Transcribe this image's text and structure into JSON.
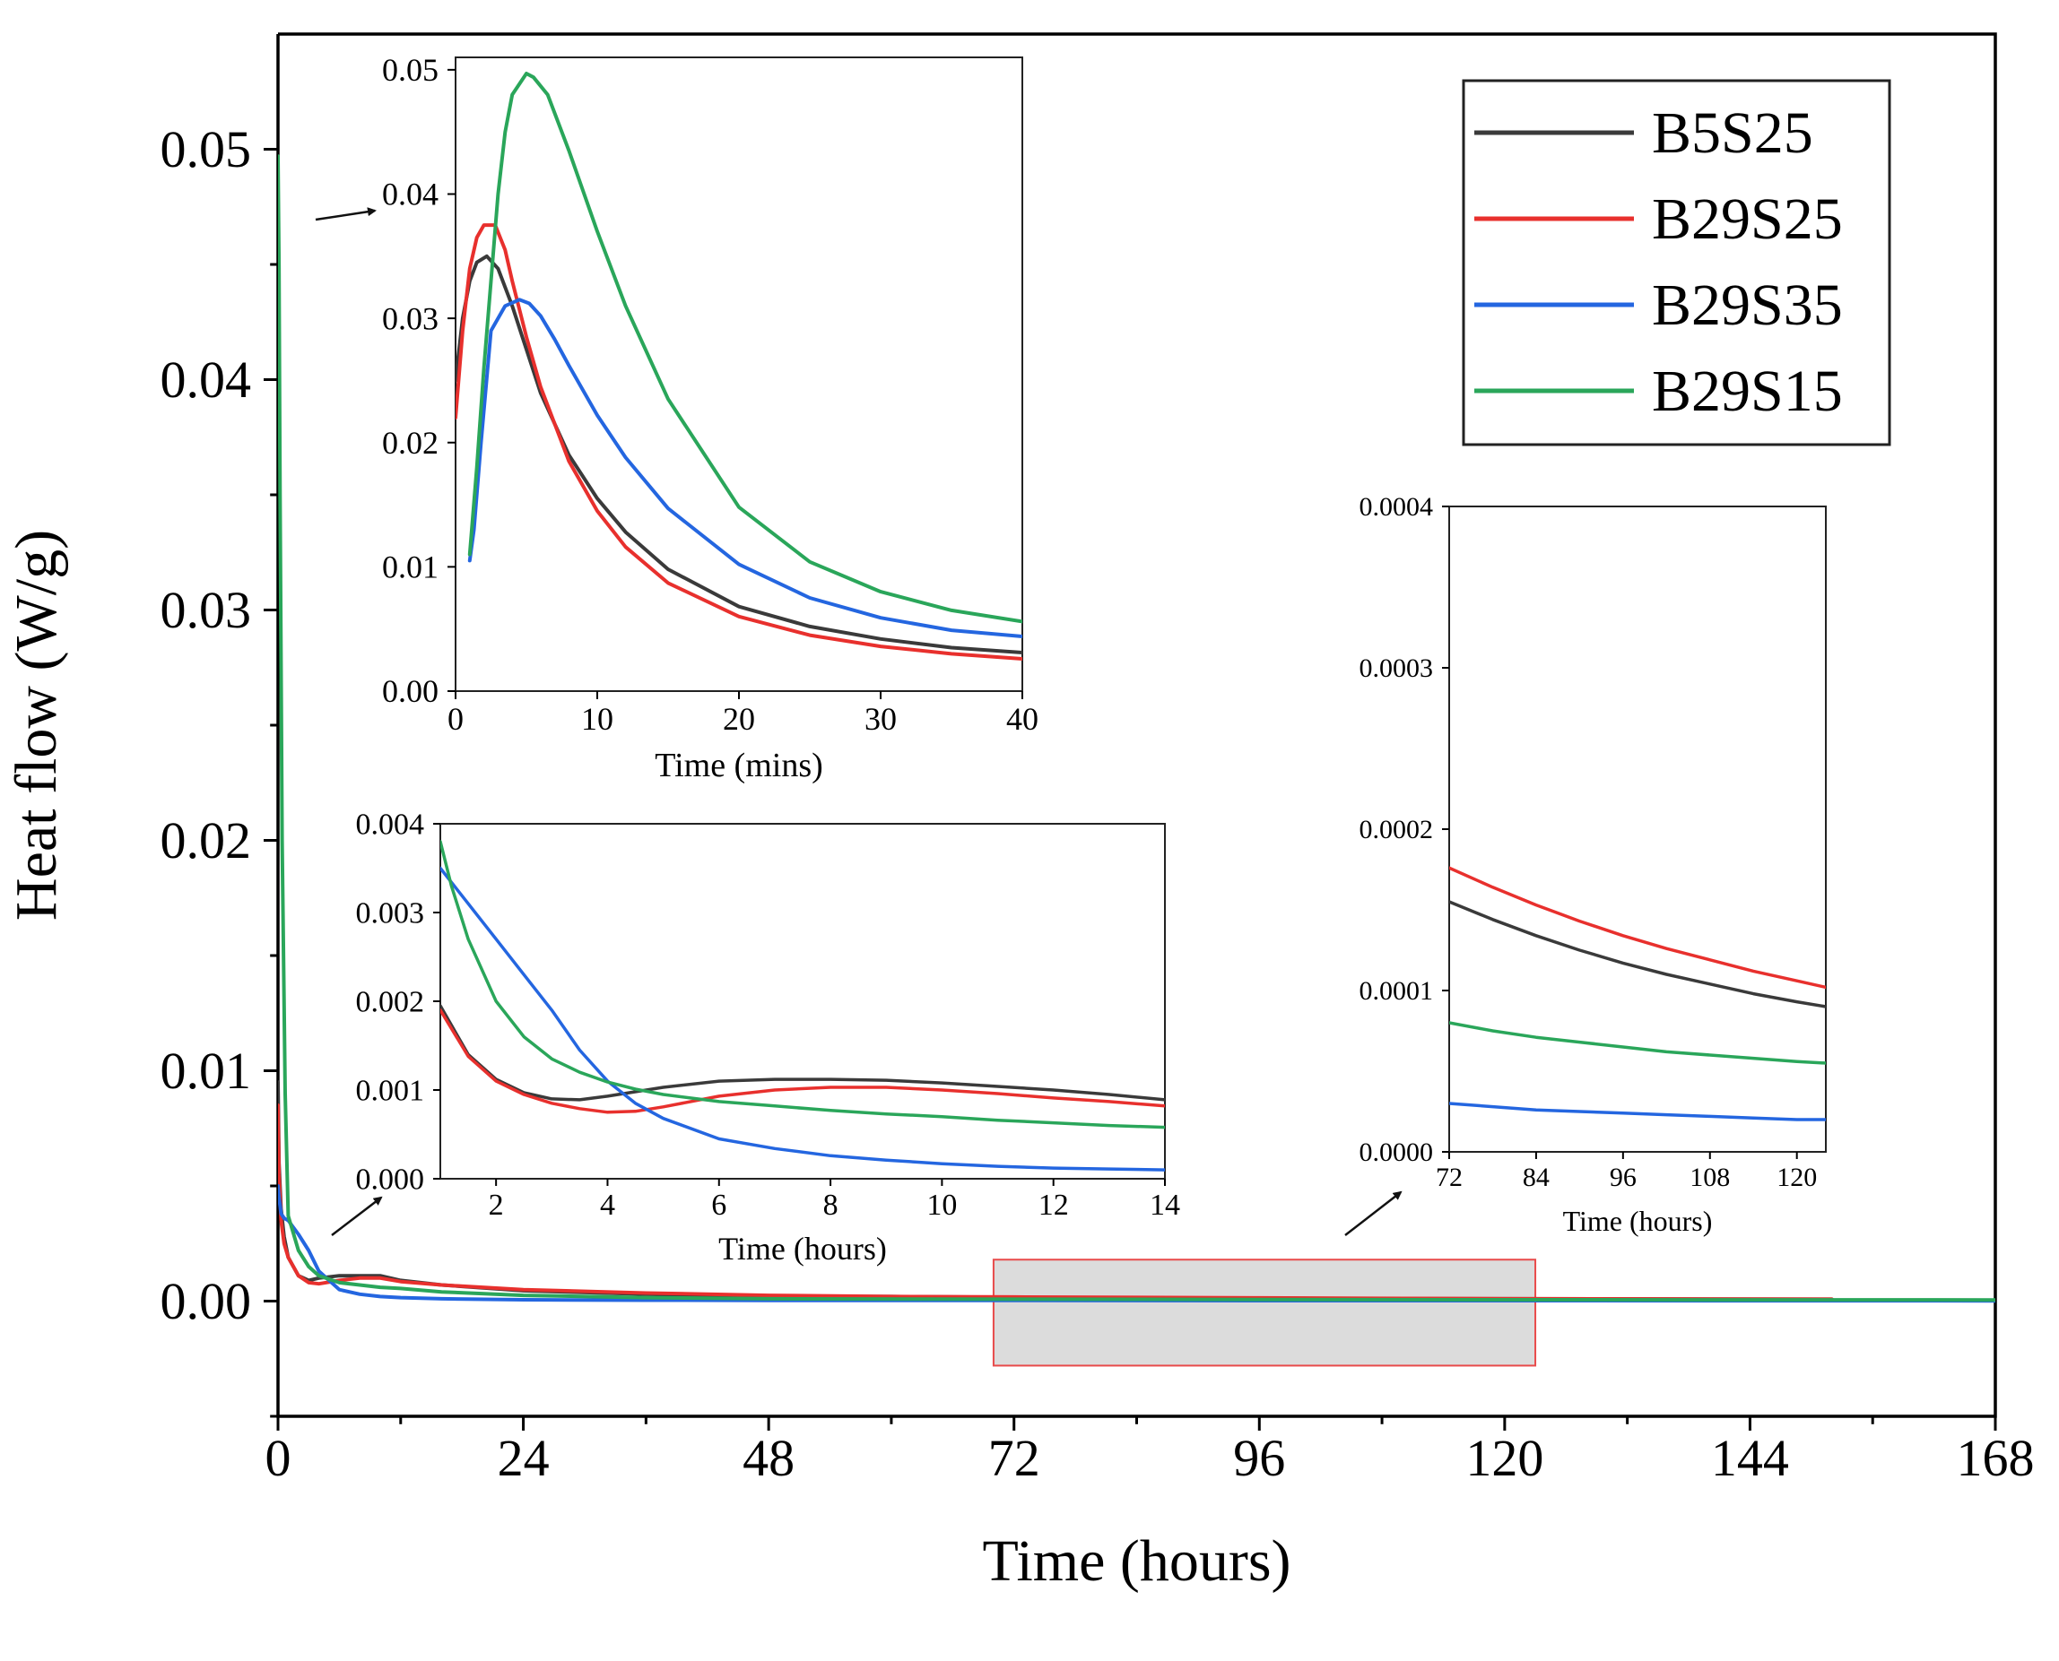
{
  "colors": {
    "B5S25": "#3a3a3a",
    "B29S25": "#e8302d",
    "B29S35": "#2466e0",
    "B29S15": "#2aa65a",
    "zoom_box_fill": "#dcdcdc",
    "zoom_box_stroke": "#e84a4a"
  },
  "chart_data": [
    {
      "id": "main",
      "type": "line",
      "xlabel": "Time (hours)",
      "ylabel": "Heat flow (W/g)",
      "xlim": [
        0,
        168
      ],
      "ylim": [
        -0.005,
        0.055
      ],
      "xticks": [
        0,
        24,
        48,
        72,
        96,
        120,
        144,
        168
      ],
      "xtick_labels": [
        "0",
        "24",
        "48",
        "72",
        "96",
        "120",
        "144",
        "168"
      ],
      "yticks": [
        0.0,
        0.01,
        0.02,
        0.03,
        0.04,
        0.05
      ],
      "ytick_labels": [
        "0.00",
        "0.01",
        "0.02",
        "0.03",
        "0.04",
        "0.05"
      ],
      "highlight_region": {
        "x": [
          70,
          123
        ],
        "y": [
          -0.0028,
          0.0018
        ]
      },
      "legend": {
        "placement": "top-right",
        "entries": [
          "B5S25",
          "B29S25",
          "B29S35",
          "B29S15"
        ]
      },
      "series": [
        {
          "name": "B5S25",
          "x": [
            0,
            0.1,
            0.3,
            0.6,
            1,
            2,
            3,
            4,
            6,
            8,
            10,
            12,
            16,
            24,
            36,
            48,
            60,
            72,
            96,
            120,
            152
          ],
          "y": [
            0.0095,
            0.006,
            0.004,
            0.0028,
            0.0019,
            0.0011,
            0.0009,
            0.001,
            0.0011,
            0.0011,
            0.0011,
            0.0009,
            0.0007,
            0.00045,
            0.0003,
            0.0002,
            0.0002,
            0.00016,
            0.00012,
            0.0001,
            8e-05
          ]
        },
        {
          "name": "B29S25",
          "x": [
            0,
            0.1,
            0.3,
            0.6,
            1,
            2,
            3,
            4,
            6,
            8,
            10,
            12,
            16,
            24,
            36,
            48,
            60,
            72,
            96,
            120,
            152
          ],
          "y": [
            0.0085,
            0.0055,
            0.0035,
            0.0025,
            0.0019,
            0.0011,
            0.0008,
            0.00075,
            0.0009,
            0.001,
            0.001,
            0.00085,
            0.0007,
            0.0005,
            0.00035,
            0.00025,
            0.0002,
            0.00018,
            0.00014,
            0.0001,
            8e-05
          ]
        },
        {
          "name": "B29S35",
          "x": [
            0,
            0.1,
            0.3,
            0.6,
            1,
            2,
            3,
            4,
            6,
            8,
            10,
            12,
            16,
            24,
            36,
            48,
            72,
            96,
            120,
            168
          ],
          "y": [
            0.005,
            0.0045,
            0.0038,
            0.0036,
            0.0035,
            0.0029,
            0.0022,
            0.0013,
            0.0005,
            0.0003,
            0.0002,
            0.00015,
            0.0001,
            6e-05,
            4e-05,
            3e-05,
            3e-05,
            2e-05,
            2e-05,
            1e-05
          ]
        },
        {
          "name": "B29S15",
          "x": [
            0,
            0.1,
            0.2,
            0.4,
            0.7,
            1,
            2,
            3,
            4,
            6,
            8,
            10,
            12,
            16,
            24,
            36,
            48,
            72,
            96,
            120,
            168
          ],
          "y": [
            0.0497,
            0.045,
            0.035,
            0.02,
            0.009,
            0.0037,
            0.0022,
            0.0015,
            0.0011,
            0.0008,
            0.0007,
            0.0006,
            0.00055,
            0.0004,
            0.00025,
            0.00015,
            0.0001,
            8e-05,
            7e-05,
            6e-05,
            5e-05
          ]
        }
      ]
    },
    {
      "id": "inset_mins",
      "type": "line",
      "xlabel": "Time (mins)",
      "ylabel": "",
      "xlim": [
        0,
        40
      ],
      "ylim": [
        0.0,
        0.051
      ],
      "xticks": [
        0,
        10,
        20,
        30,
        40
      ],
      "xtick_labels": [
        "0",
        "10",
        "20",
        "30",
        "40"
      ],
      "yticks": [
        0.0,
        0.01,
        0.02,
        0.03,
        0.04,
        0.05
      ],
      "ytick_labels": [
        "0.00",
        "0.01",
        "0.02",
        "0.03",
        "0.04",
        "0.05"
      ],
      "series": [
        {
          "name": "B5S25",
          "x": [
            0,
            0.5,
            1,
            1.5,
            2.2,
            3,
            4,
            5,
            6,
            8,
            10,
            12,
            15,
            20,
            25,
            30,
            35,
            40
          ],
          "y": [
            0.025,
            0.03,
            0.033,
            0.0345,
            0.035,
            0.034,
            0.031,
            0.0275,
            0.024,
            0.019,
            0.0155,
            0.0128,
            0.0098,
            0.0068,
            0.0052,
            0.0042,
            0.0035,
            0.0031
          ]
        },
        {
          "name": "B29S25",
          "x": [
            0,
            0.5,
            1,
            1.5,
            2,
            2.8,
            3.5,
            4,
            5,
            6,
            8,
            10,
            12,
            15,
            20,
            25,
            30,
            35,
            40
          ],
          "y": [
            0.022,
            0.029,
            0.034,
            0.0365,
            0.0375,
            0.0375,
            0.0355,
            0.033,
            0.0285,
            0.0245,
            0.0185,
            0.0145,
            0.0116,
            0.0087,
            0.006,
            0.0045,
            0.0036,
            0.003,
            0.0026
          ]
        },
        {
          "name": "B29S35",
          "x": [
            1,
            1.3,
            1.8,
            2.5,
            3.5,
            4.5,
            5.2,
            6,
            7,
            8,
            10,
            12,
            15,
            20,
            25,
            30,
            35,
            40
          ],
          "y": [
            0.0105,
            0.013,
            0.02,
            0.029,
            0.031,
            0.0315,
            0.0312,
            0.0302,
            0.0283,
            0.0262,
            0.0222,
            0.0188,
            0.0147,
            0.0102,
            0.0075,
            0.0059,
            0.0049,
            0.0044
          ]
        },
        {
          "name": "B29S15",
          "x": [
            1,
            1.5,
            2,
            2.5,
            3,
            3.5,
            4,
            5,
            5.5,
            6.5,
            8,
            10,
            12,
            15,
            20,
            25,
            30,
            35,
            40
          ],
          "y": [
            0.011,
            0.018,
            0.026,
            0.033,
            0.04,
            0.045,
            0.048,
            0.0497,
            0.0494,
            0.048,
            0.0435,
            0.037,
            0.031,
            0.0235,
            0.0148,
            0.0104,
            0.008,
            0.0065,
            0.0056
          ]
        }
      ]
    },
    {
      "id": "inset_hours",
      "type": "line",
      "xlabel": "Time (hours)",
      "ylabel": "",
      "xlim": [
        1,
        14
      ],
      "ylim": [
        0.0,
        0.004
      ],
      "xticks": [
        2,
        4,
        6,
        8,
        10,
        12,
        14
      ],
      "xtick_labels": [
        "2",
        "4",
        "6",
        "8",
        "10",
        "12",
        "14"
      ],
      "yticks": [
        0.0,
        0.001,
        0.002,
        0.003,
        0.004
      ],
      "ytick_labels": [
        "0.000",
        "0.001",
        "0.002",
        "0.003",
        "0.004"
      ],
      "series": [
        {
          "name": "B5S25",
          "x": [
            1,
            1.5,
            2,
            2.5,
            3,
            3.5,
            4,
            5,
            6,
            7,
            8,
            9,
            10,
            11,
            12,
            13,
            14
          ],
          "y": [
            0.00195,
            0.0014,
            0.00112,
            0.00097,
            0.0009,
            0.00089,
            0.00093,
            0.00103,
            0.0011,
            0.00112,
            0.00112,
            0.00111,
            0.00108,
            0.00104,
            0.001,
            0.00095,
            0.00089
          ]
        },
        {
          "name": "B29S25",
          "x": [
            1,
            1.5,
            2,
            2.5,
            3,
            3.5,
            4,
            4.5,
            5,
            6,
            7,
            8,
            9,
            10,
            11,
            12,
            13,
            14
          ],
          "y": [
            0.0019,
            0.00138,
            0.0011,
            0.00095,
            0.00085,
            0.00079,
            0.00075,
            0.00076,
            0.00081,
            0.00093,
            0.001,
            0.00103,
            0.00103,
            0.001,
            0.00096,
            0.00091,
            0.00087,
            0.00082
          ]
        },
        {
          "name": "B29S35",
          "x": [
            1,
            1.5,
            2,
            2.5,
            3,
            3.5,
            4,
            4.5,
            5,
            6,
            7,
            8,
            9,
            10,
            11,
            12,
            13,
            14
          ],
          "y": [
            0.0035,
            0.0031,
            0.0027,
            0.0023,
            0.0019,
            0.00145,
            0.0011,
            0.00085,
            0.00068,
            0.00045,
            0.00034,
            0.00026,
            0.00021,
            0.00017,
            0.00014,
            0.00012,
            0.00011,
            0.0001
          ]
        },
        {
          "name": "B29S15",
          "x": [
            1,
            1.2,
            1.5,
            2,
            2.5,
            3,
            3.5,
            4,
            4.5,
            5,
            6,
            7,
            8,
            9,
            10,
            11,
            12,
            13,
            14
          ],
          "y": [
            0.0038,
            0.0033,
            0.0027,
            0.002,
            0.0016,
            0.00135,
            0.0012,
            0.00109,
            0.00101,
            0.00095,
            0.00087,
            0.00082,
            0.00077,
            0.00073,
            0.0007,
            0.00066,
            0.00063,
            0.0006,
            0.00058
          ]
        }
      ]
    },
    {
      "id": "inset_late",
      "type": "line",
      "xlabel": "Time (hours)",
      "ylabel": "",
      "xlim": [
        72,
        124
      ],
      "ylim": [
        0.0,
        0.0004
      ],
      "xticks": [
        72,
        84,
        96,
        108,
        120
      ],
      "xtick_labels": [
        "72",
        "84",
        "96",
        "108",
        "120"
      ],
      "yticks": [
        0.0,
        0.0001,
        0.0002,
        0.0003,
        0.0004
      ],
      "ytick_labels": [
        "0.0000",
        "0.0001",
        "0.0002",
        "0.0003",
        "0.0004"
      ],
      "series": [
        {
          "name": "B5S25",
          "x": [
            72,
            78,
            84,
            90,
            96,
            102,
            108,
            114,
            120,
            124
          ],
          "y": [
            0.000155,
            0.000144,
            0.000134,
            0.000125,
            0.000117,
            0.00011,
            0.000104,
            9.8e-05,
            9.3e-05,
            9e-05
          ]
        },
        {
          "name": "B29S25",
          "x": [
            72,
            78,
            84,
            90,
            96,
            102,
            108,
            114,
            120,
            124
          ],
          "y": [
            0.000176,
            0.000164,
            0.000153,
            0.000143,
            0.000134,
            0.000126,
            0.000119,
            0.000112,
            0.000106,
            0.000102
          ]
        },
        {
          "name": "B29S35",
          "x": [
            72,
            78,
            84,
            90,
            96,
            102,
            108,
            114,
            120,
            124
          ],
          "y": [
            3e-05,
            2.8e-05,
            2.6e-05,
            2.5e-05,
            2.4e-05,
            2.3e-05,
            2.2e-05,
            2.1e-05,
            2e-05,
            2e-05
          ]
        },
        {
          "name": "B29S15",
          "x": [
            72,
            78,
            84,
            90,
            96,
            102,
            108,
            114,
            120,
            124
          ],
          "y": [
            8e-05,
            7.5e-05,
            7.1e-05,
            6.8e-05,
            6.5e-05,
            6.2e-05,
            6e-05,
            5.8e-05,
            5.6e-05,
            5.5e-05
          ]
        }
      ]
    }
  ]
}
